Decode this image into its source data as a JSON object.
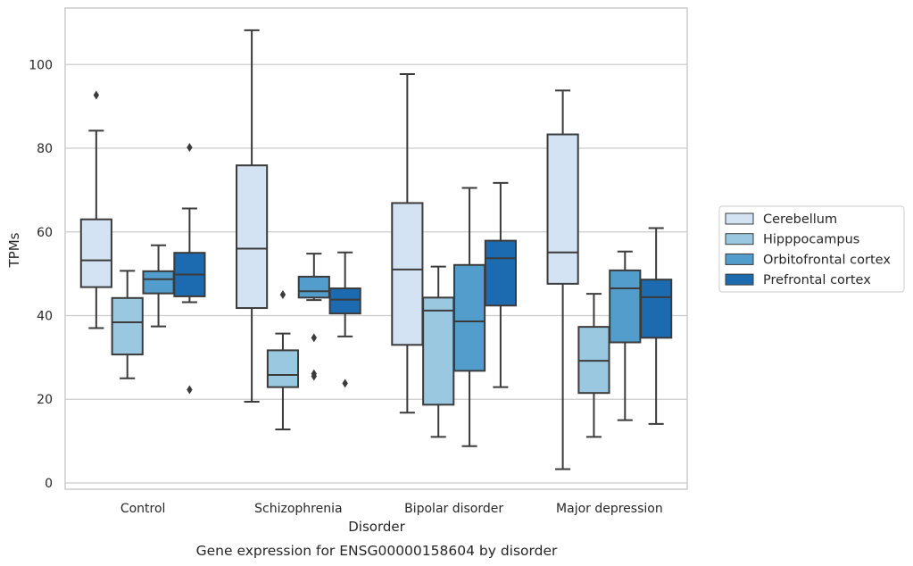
{
  "chart_data": {
    "type": "box",
    "title": "",
    "caption": "Gene expression for ENSG00000158604 by disorder",
    "xlabel": "Disorder",
    "ylabel": "TPMs",
    "ylim": [
      -1.5,
      113.5
    ],
    "yticks": [
      0,
      20,
      40,
      60,
      80,
      100
    ],
    "grid": true,
    "legend_position": "right",
    "categories": [
      "Control",
      "Schizophrenia",
      "Bipolar disorder",
      "Major depression"
    ],
    "series": [
      {
        "name": "Cerebellum",
        "color": "#d3e3f3",
        "boxes": [
          {
            "whisker_low": 37,
            "q1": 46.8,
            "median": 53.2,
            "q3": 63,
            "whisker_high": 84.2,
            "outliers": [
              92.7
            ]
          },
          {
            "whisker_low": 19.4,
            "q1": 41.8,
            "median": 56,
            "q3": 75.9,
            "whisker_high": 108.2,
            "outliers": []
          },
          {
            "whisker_low": 16.8,
            "q1": 33,
            "median": 51,
            "q3": 66.9,
            "whisker_high": 97.7,
            "outliers": []
          },
          {
            "whisker_low": 3.3,
            "q1": 47.6,
            "median": 55.1,
            "q3": 83.3,
            "whisker_high": 93.8,
            "outliers": []
          }
        ]
      },
      {
        "name": "Hipppocampus",
        "color": "#9ac8e0",
        "boxes": [
          {
            "whisker_low": 25,
            "q1": 30.7,
            "median": 38.4,
            "q3": 44.2,
            "whisker_high": 50.7,
            "outliers": []
          },
          {
            "whisker_low": 12.8,
            "q1": 22.9,
            "median": 25.8,
            "q3": 31.7,
            "whisker_high": 35.7,
            "outliers": [
              45
            ]
          },
          {
            "whisker_low": 11,
            "q1": 18.7,
            "median": 41.2,
            "q3": 44.3,
            "whisker_high": 51.7,
            "outliers": []
          },
          {
            "whisker_low": 11,
            "q1": 21.5,
            "median": 29.2,
            "q3": 37.3,
            "whisker_high": 45.2,
            "outliers": []
          }
        ]
      },
      {
        "name": "Orbitofrontal cortex",
        "color": "#529dcc",
        "boxes": [
          {
            "whisker_low": 37.4,
            "q1": 45.3,
            "median": 48.7,
            "q3": 50.6,
            "whisker_high": 56.8,
            "outliers": []
          },
          {
            "whisker_low": 43.7,
            "q1": 44.3,
            "median": 45.8,
            "q3": 49.3,
            "whisker_high": 54.8,
            "outliers": [
              34.7,
              26.1,
              25.5
            ]
          },
          {
            "whisker_low": 8.8,
            "q1": 26.8,
            "median": 38.6,
            "q3": 52.1,
            "whisker_high": 70.5,
            "outliers": []
          },
          {
            "whisker_low": 15,
            "q1": 33.6,
            "median": 46.5,
            "q3": 50.8,
            "whisker_high": 55.3,
            "outliers": []
          }
        ]
      },
      {
        "name": "Prefrontal cortex",
        "color": "#1c6aaf",
        "boxes": [
          {
            "whisker_low": 43.2,
            "q1": 44.6,
            "median": 49.8,
            "q3": 55,
            "whisker_high": 65.6,
            "outliers": [
              80.2,
              22.3
            ]
          },
          {
            "whisker_low": 35,
            "q1": 40.5,
            "median": 43.8,
            "q3": 46.5,
            "whisker_high": 55.1,
            "outliers": [
              23.8
            ]
          },
          {
            "whisker_low": 22.9,
            "q1": 42.4,
            "median": 53.7,
            "q3": 57.9,
            "whisker_high": 71.7,
            "outliers": []
          },
          {
            "whisker_low": 14.1,
            "q1": 34.7,
            "median": 44.4,
            "q3": 48.6,
            "whisker_high": 60.9,
            "outliers": []
          }
        ]
      }
    ]
  }
}
